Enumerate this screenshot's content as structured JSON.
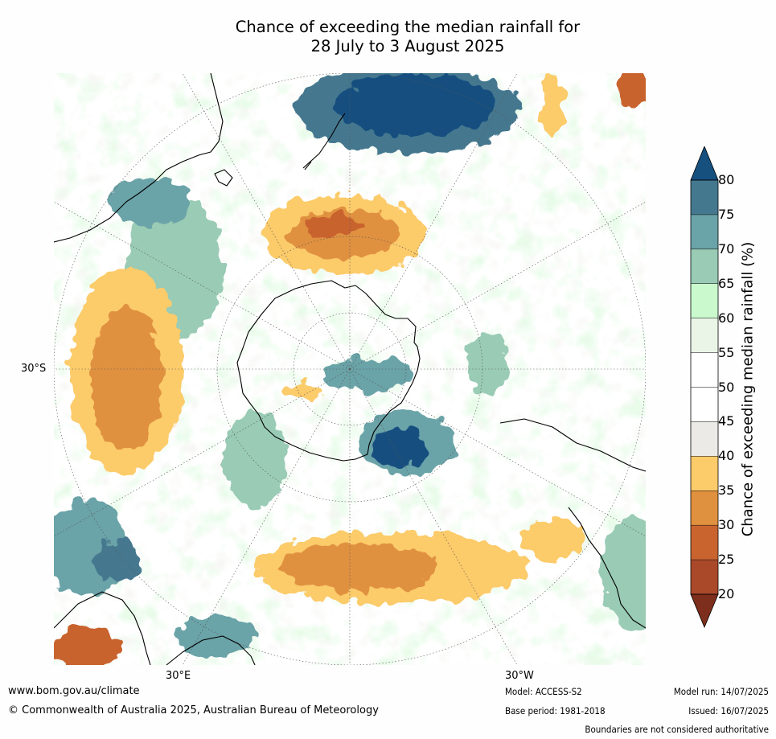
{
  "title": {
    "line1": "Chance of exceeding the median rainfall for",
    "line2": "28 July to 3 August 2025"
  },
  "map": {
    "projection": "south-polar stereographic",
    "graticule_labels": {
      "lat": "30°S",
      "lon_east": "30°E",
      "lon_west": "30°W"
    }
  },
  "colorbar": {
    "label": "Chance of exceeding median rainfall (%)",
    "ticks": [
      "20",
      "25",
      "30",
      "35",
      "40",
      "45",
      "50",
      "55",
      "60",
      "65",
      "70",
      "75",
      "80"
    ],
    "colors": [
      "#7e2e1c",
      "#a9492a",
      "#c9642f",
      "#e0913f",
      "#fccb6a",
      "#eceae6",
      "#ffffff",
      "#ffffff",
      "#eaf5e8",
      "#c9f9cd",
      "#99cbb5",
      "#6aa3a8",
      "#44788f",
      "#15507f"
    ]
  },
  "footer": {
    "url": "www.bom.gov.au/climate",
    "copyright": "© Commonwealth of Australia 2025, Australian Bureau of Meteorology",
    "model": "Model: ACCESS-S2",
    "base_period": "Base period: 1981-2018",
    "model_run": "Model run: 14/07/2025",
    "issued": "Issued: 16/07/2025",
    "disclaimer": "Boundaries are not considered authoritative"
  }
}
